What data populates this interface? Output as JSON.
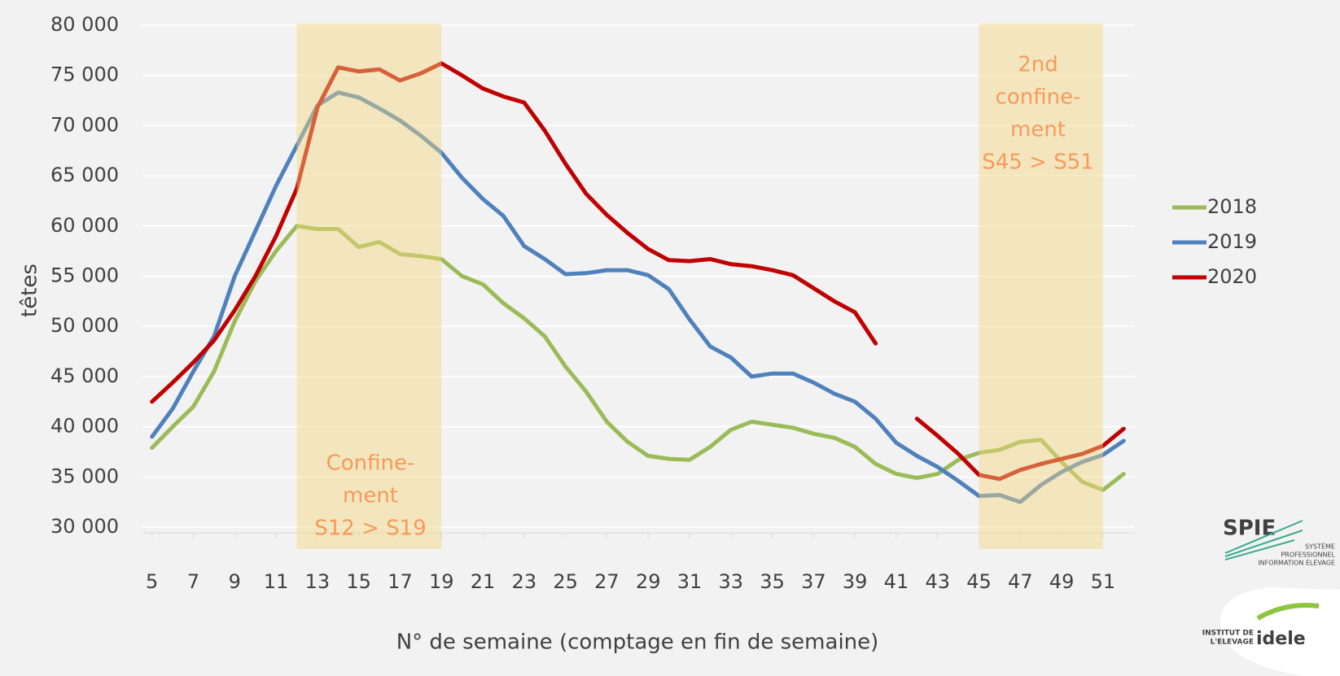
{
  "chart_data": {
    "type": "line",
    "x": [
      5,
      6,
      7,
      8,
      9,
      10,
      11,
      12,
      13,
      14,
      15,
      16,
      17,
      18,
      19,
      20,
      21,
      22,
      23,
      24,
      25,
      26,
      27,
      28,
      29,
      30,
      31,
      32,
      33,
      34,
      35,
      36,
      37,
      38,
      39,
      40,
      41,
      42,
      43,
      44,
      45,
      46,
      47,
      48,
      49,
      50,
      51,
      52
    ],
    "xlim": [
      4.5,
      52.5
    ],
    "xticks": [
      5,
      7,
      9,
      11,
      13,
      15,
      17,
      19,
      21,
      23,
      25,
      27,
      29,
      31,
      33,
      35,
      37,
      39,
      41,
      43,
      45,
      47,
      49,
      51
    ],
    "ylim": [
      30000,
      80000
    ],
    "yticks": [
      {
        "value": 30000,
        "label": "30 000"
      },
      {
        "value": 35000,
        "label": "35 000"
      },
      {
        "value": 40000,
        "label": "40 000"
      },
      {
        "value": 45000,
        "label": "45 000"
      },
      {
        "value": 50000,
        "label": "50 000"
      },
      {
        "value": 55000,
        "label": "55 000"
      },
      {
        "value": 60000,
        "label": "60 000"
      },
      {
        "value": 65000,
        "label": "65 000"
      },
      {
        "value": 70000,
        "label": "70 000"
      },
      {
        "value": 75000,
        "label": "75 000"
      },
      {
        "value": 80000,
        "label": "80 000"
      }
    ],
    "grid": true,
    "x_label": "N° de semaine (comptage  en fin de semaine)",
    "y_label": "têtes",
    "legend": "right",
    "series": [
      {
        "name": "2018",
        "color": "#9bbb59",
        "values": [
          37900,
          40000,
          42000,
          45500,
          50500,
          54500,
          57500,
          60000,
          59700,
          59700,
          57900,
          58400,
          57200,
          57000,
          56700,
          55000,
          54200,
          52300,
          50800,
          49000,
          46000,
          43500,
          40500,
          38500,
          37100,
          36800,
          36700,
          38000,
          39700,
          40500,
          40200,
          39900,
          39300,
          38900,
          38000,
          36300,
          35300,
          34900,
          35300,
          36700,
          37400,
          37700,
          38500,
          38700,
          36500,
          34500,
          33700,
          35300
        ]
      },
      {
        "name": "2019",
        "color": "#4f81bd",
        "values": [
          39000,
          41800,
          45500,
          49000,
          55000,
          59500,
          64000,
          68000,
          72000,
          73300,
          72800,
          71700,
          70500,
          69000,
          67300,
          64800,
          62700,
          61000,
          58000,
          56700,
          55200,
          55300,
          55600,
          55600,
          55100,
          53700,
          50700,
          48000,
          46900,
          45000,
          45300,
          45300,
          44400,
          43300,
          42500,
          40800,
          38400,
          37100,
          36000,
          34600,
          33100,
          33200,
          32500,
          34200,
          35500,
          36500,
          37200,
          38600
        ]
      },
      {
        "name": "2020",
        "color": "#c00000",
        "values": [
          42500,
          44400,
          46400,
          48600,
          51600,
          55000,
          59000,
          63700,
          71800,
          75800,
          75400,
          75600,
          74500,
          75200,
          76200,
          75000,
          73700,
          72900,
          72300,
          69500,
          66200,
          63200,
          61100,
          59300,
          57700,
          56600,
          56500,
          56700,
          56200,
          56000,
          55600,
          55100,
          53800,
          52500,
          51400,
          48300,
          null,
          40800,
          39100,
          37300,
          35200,
          34800,
          35700,
          36300,
          36800,
          37300,
          38100,
          39800
        ]
      }
    ],
    "shaded_ranges": [
      [
        12,
        19
      ],
      [
        45,
        51
      ]
    ],
    "annotations": [
      {
        "lines": [
          "Confine-",
          "ment",
          "S12 > S19"
        ]
      },
      {
        "lines": [
          "2nd",
          "confine-",
          "ment",
          "S45 > S51"
        ]
      }
    ]
  },
  "logos": {
    "spie": "SPIE",
    "spie_caption": [
      "SYSTÈME",
      "PROFESSIONNEL",
      "INFORMATION ELEVAGE"
    ],
    "idele_caption": [
      "INSTITUT DE",
      "L'ELEVAGE"
    ],
    "idele": "idele"
  }
}
